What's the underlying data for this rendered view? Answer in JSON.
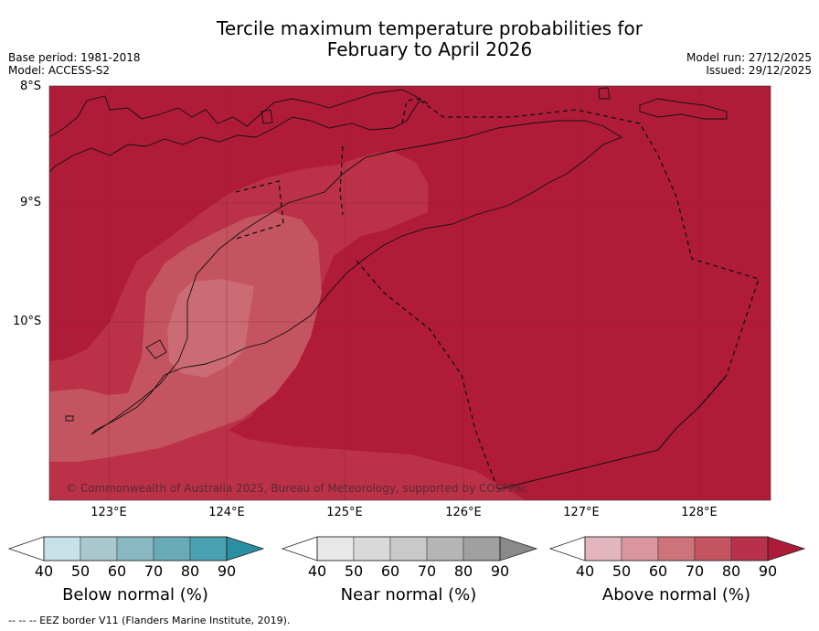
{
  "title_line1": "Tercile maximum temperature probabilities for",
  "title_line2": "February to April 2026",
  "meta_left": {
    "base_period": "Base period: 1981-2018",
    "model": "Model: ACCESS-S2"
  },
  "meta_right": {
    "model_run": "Model run: 27/12/2025",
    "issued": "Issued: 29/12/2025"
  },
  "lat_labels": [
    "8°S",
    "9°S",
    "10°S"
  ],
  "lon_labels": [
    "123°E",
    "124°E",
    "125°E",
    "126°E",
    "127°E",
    "128°E"
  ],
  "copyright": "© Commonwealth of Australia 2025, Bureau of Meteorology, supported by COSPPac",
  "colorbars": [
    {
      "name": "below",
      "title": "Below normal (%)",
      "ticks": [
        "40",
        "50",
        "60",
        "70",
        "80",
        "90"
      ],
      "colors": [
        "#c7e1e8",
        "#a9c8ce",
        "#88b8c2",
        "#6aa9b6",
        "#48a0b0",
        "#2b8fa3"
      ]
    },
    {
      "name": "near",
      "title": "Near normal (%)",
      "ticks": [
        "40",
        "50",
        "60",
        "70",
        "80",
        "90"
      ],
      "colors": [
        "#e8e8e8",
        "#d9d9d9",
        "#c9c9c9",
        "#b5b5b5",
        "#a0a0a0",
        "#8a8a8a"
      ]
    },
    {
      "name": "above",
      "title": "Above normal (%)",
      "ticks": [
        "40",
        "50",
        "60",
        "70",
        "80",
        "90"
      ],
      "colors": [
        "#e3b6bf",
        "#d9969f",
        "#cc7479",
        "#c4545f",
        "#b8314a",
        "#ae1b3a"
      ]
    }
  ],
  "map_colors": {
    "above_90": "#b01b38",
    "above_80": "#bb3148",
    "above_70": "#c4545f",
    "above_60": "#cb6b74"
  },
  "footer": "--  --  -- EEZ border V11 (Flanders Marine Institute, 2019)."
}
